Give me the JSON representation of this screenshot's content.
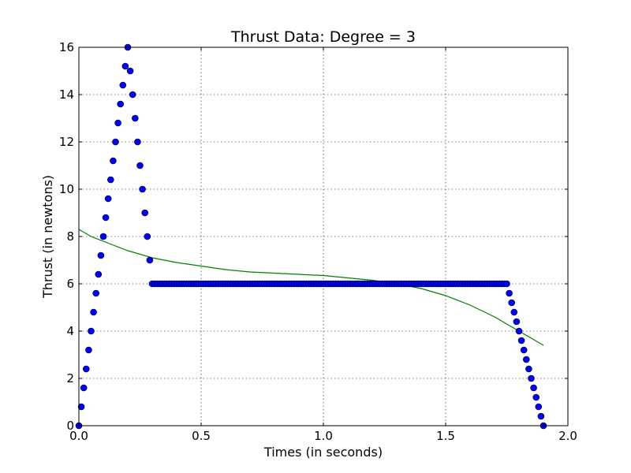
{
  "chart_data": {
    "type": "scatter",
    "title": "Thrust Data: Degree =  3",
    "xlabel": "Times (in seconds)",
    "ylabel": "Thrust (in newtons)",
    "xlim": [
      0.0,
      2.0
    ],
    "ylim": [
      0,
      16
    ],
    "xticks": [
      0.0,
      0.5,
      1.0,
      1.5,
      2.0
    ],
    "xtick_labels": [
      "0.0",
      "0.5",
      "1.0",
      "1.5",
      "2.0"
    ],
    "yticks": [
      0,
      2,
      4,
      6,
      8,
      10,
      12,
      14,
      16
    ],
    "ytick_labels": [
      "0",
      "2",
      "4",
      "6",
      "8",
      "10",
      "12",
      "14",
      "16"
    ],
    "grid": true,
    "colors": {
      "points": "#0000ff",
      "fit": "#008000"
    },
    "series": [
      {
        "kind": "scatter",
        "points": [
          [
            0.0,
            0.0
          ],
          [
            0.01,
            0.8
          ],
          [
            0.02,
            1.6
          ],
          [
            0.03,
            2.4
          ],
          [
            0.04,
            3.2
          ],
          [
            0.05,
            4.0
          ],
          [
            0.06,
            4.8
          ],
          [
            0.07,
            5.6
          ],
          [
            0.08,
            6.4
          ],
          [
            0.09,
            7.2
          ],
          [
            0.1,
            8.0
          ],
          [
            0.11,
            8.8
          ],
          [
            0.12,
            9.6
          ],
          [
            0.13,
            10.4
          ],
          [
            0.14,
            11.2
          ],
          [
            0.15,
            12.0
          ],
          [
            0.16,
            12.8
          ],
          [
            0.17,
            13.6
          ],
          [
            0.18,
            14.4
          ],
          [
            0.19,
            15.2
          ],
          [
            0.2,
            16.0
          ],
          [
            0.21,
            15.0
          ],
          [
            0.22,
            14.0
          ],
          [
            0.23,
            13.0
          ],
          [
            0.24,
            12.0
          ],
          [
            0.25,
            11.0
          ],
          [
            0.26,
            10.0
          ],
          [
            0.27,
            9.0
          ],
          [
            0.28,
            8.0
          ],
          [
            0.29,
            7.0
          ],
          [
            0.3,
            6.0
          ],
          [
            0.31,
            6.0
          ],
          [
            0.32,
            6.0
          ],
          [
            0.33,
            6.0
          ],
          [
            0.34,
            6.0
          ],
          [
            0.35,
            6.0
          ],
          [
            0.36,
            6.0
          ],
          [
            0.37,
            6.0
          ],
          [
            0.38,
            6.0
          ],
          [
            0.39,
            6.0
          ],
          [
            0.4,
            6.0
          ],
          [
            0.41,
            6.0
          ],
          [
            0.42,
            6.0
          ],
          [
            0.43,
            6.0
          ],
          [
            0.44,
            6.0
          ],
          [
            0.45,
            6.0
          ],
          [
            0.46,
            6.0
          ],
          [
            0.47,
            6.0
          ],
          [
            0.48,
            6.0
          ],
          [
            0.49,
            6.0
          ],
          [
            0.5,
            6.0
          ],
          [
            0.51,
            6.0
          ],
          [
            0.52,
            6.0
          ],
          [
            0.53,
            6.0
          ],
          [
            0.54,
            6.0
          ],
          [
            0.55,
            6.0
          ],
          [
            0.56,
            6.0
          ],
          [
            0.57,
            6.0
          ],
          [
            0.58,
            6.0
          ],
          [
            0.59,
            6.0
          ],
          [
            0.6,
            6.0
          ],
          [
            0.61,
            6.0
          ],
          [
            0.62,
            6.0
          ],
          [
            0.63,
            6.0
          ],
          [
            0.64,
            6.0
          ],
          [
            0.65,
            6.0
          ],
          [
            0.66,
            6.0
          ],
          [
            0.67,
            6.0
          ],
          [
            0.68,
            6.0
          ],
          [
            0.69,
            6.0
          ],
          [
            0.7,
            6.0
          ],
          [
            0.71,
            6.0
          ],
          [
            0.72,
            6.0
          ],
          [
            0.73,
            6.0
          ],
          [
            0.74,
            6.0
          ],
          [
            0.75,
            6.0
          ],
          [
            0.76,
            6.0
          ],
          [
            0.77,
            6.0
          ],
          [
            0.78,
            6.0
          ],
          [
            0.79,
            6.0
          ],
          [
            0.8,
            6.0
          ],
          [
            0.81,
            6.0
          ],
          [
            0.82,
            6.0
          ],
          [
            0.83,
            6.0
          ],
          [
            0.84,
            6.0
          ],
          [
            0.85,
            6.0
          ],
          [
            0.86,
            6.0
          ],
          [
            0.87,
            6.0
          ],
          [
            0.88,
            6.0
          ],
          [
            0.89,
            6.0
          ],
          [
            0.9,
            6.0
          ],
          [
            0.91,
            6.0
          ],
          [
            0.92,
            6.0
          ],
          [
            0.93,
            6.0
          ],
          [
            0.94,
            6.0
          ],
          [
            0.95,
            6.0
          ],
          [
            0.96,
            6.0
          ],
          [
            0.97,
            6.0
          ],
          [
            0.98,
            6.0
          ],
          [
            0.99,
            6.0
          ],
          [
            1.0,
            6.0
          ],
          [
            1.01,
            6.0
          ],
          [
            1.02,
            6.0
          ],
          [
            1.03,
            6.0
          ],
          [
            1.04,
            6.0
          ],
          [
            1.05,
            6.0
          ],
          [
            1.06,
            6.0
          ],
          [
            1.07,
            6.0
          ],
          [
            1.08,
            6.0
          ],
          [
            1.09,
            6.0
          ],
          [
            1.1,
            6.0
          ],
          [
            1.11,
            6.0
          ],
          [
            1.12,
            6.0
          ],
          [
            1.13,
            6.0
          ],
          [
            1.14,
            6.0
          ],
          [
            1.15,
            6.0
          ],
          [
            1.16,
            6.0
          ],
          [
            1.17,
            6.0
          ],
          [
            1.18,
            6.0
          ],
          [
            1.19,
            6.0
          ],
          [
            1.2,
            6.0
          ],
          [
            1.21,
            6.0
          ],
          [
            1.22,
            6.0
          ],
          [
            1.23,
            6.0
          ],
          [
            1.24,
            6.0
          ],
          [
            1.25,
            6.0
          ],
          [
            1.26,
            6.0
          ],
          [
            1.27,
            6.0
          ],
          [
            1.28,
            6.0
          ],
          [
            1.29,
            6.0
          ],
          [
            1.3,
            6.0
          ],
          [
            1.31,
            6.0
          ],
          [
            1.32,
            6.0
          ],
          [
            1.33,
            6.0
          ],
          [
            1.34,
            6.0
          ],
          [
            1.35,
            6.0
          ],
          [
            1.36,
            6.0
          ],
          [
            1.37,
            6.0
          ],
          [
            1.38,
            6.0
          ],
          [
            1.39,
            6.0
          ],
          [
            1.4,
            6.0
          ],
          [
            1.41,
            6.0
          ],
          [
            1.42,
            6.0
          ],
          [
            1.43,
            6.0
          ],
          [
            1.44,
            6.0
          ],
          [
            1.45,
            6.0
          ],
          [
            1.46,
            6.0
          ],
          [
            1.47,
            6.0
          ],
          [
            1.48,
            6.0
          ],
          [
            1.49,
            6.0
          ],
          [
            1.5,
            6.0
          ],
          [
            1.51,
            6.0
          ],
          [
            1.52,
            6.0
          ],
          [
            1.53,
            6.0
          ],
          [
            1.54,
            6.0
          ],
          [
            1.55,
            6.0
          ],
          [
            1.56,
            6.0
          ],
          [
            1.57,
            6.0
          ],
          [
            1.58,
            6.0
          ],
          [
            1.59,
            6.0
          ],
          [
            1.6,
            6.0
          ],
          [
            1.61,
            6.0
          ],
          [
            1.62,
            6.0
          ],
          [
            1.63,
            6.0
          ],
          [
            1.64,
            6.0
          ],
          [
            1.65,
            6.0
          ],
          [
            1.66,
            6.0
          ],
          [
            1.67,
            6.0
          ],
          [
            1.68,
            6.0
          ],
          [
            1.69,
            6.0
          ],
          [
            1.7,
            6.0
          ],
          [
            1.71,
            6.0
          ],
          [
            1.72,
            6.0
          ],
          [
            1.73,
            6.0
          ],
          [
            1.74,
            6.0
          ],
          [
            1.75,
            6.0
          ],
          [
            1.76,
            5.6
          ],
          [
            1.77,
            5.2
          ],
          [
            1.78,
            4.8
          ],
          [
            1.79,
            4.4
          ],
          [
            1.8,
            4.0
          ],
          [
            1.81,
            3.6
          ],
          [
            1.82,
            3.2
          ],
          [
            1.83,
            2.8
          ],
          [
            1.84,
            2.4
          ],
          [
            1.85,
            2.0
          ],
          [
            1.86,
            1.6
          ],
          [
            1.87,
            1.2
          ],
          [
            1.88,
            0.8
          ],
          [
            1.89,
            0.4
          ],
          [
            1.9,
            0.0
          ]
        ]
      },
      {
        "kind": "line",
        "points": [
          [
            0.0,
            8.3
          ],
          [
            0.05,
            8.0
          ],
          [
            0.1,
            7.8
          ],
          [
            0.2,
            7.4
          ],
          [
            0.3,
            7.1
          ],
          [
            0.4,
            6.9
          ],
          [
            0.5,
            6.75
          ],
          [
            0.6,
            6.6
          ],
          [
            0.7,
            6.5
          ],
          [
            0.8,
            6.45
          ],
          [
            0.9,
            6.4
          ],
          [
            1.0,
            6.35
          ],
          [
            1.1,
            6.25
          ],
          [
            1.2,
            6.15
          ],
          [
            1.3,
            6.0
          ],
          [
            1.4,
            5.8
          ],
          [
            1.5,
            5.5
          ],
          [
            1.6,
            5.1
          ],
          [
            1.7,
            4.6
          ],
          [
            1.8,
            4.0
          ],
          [
            1.9,
            3.4
          ]
        ]
      }
    ]
  }
}
